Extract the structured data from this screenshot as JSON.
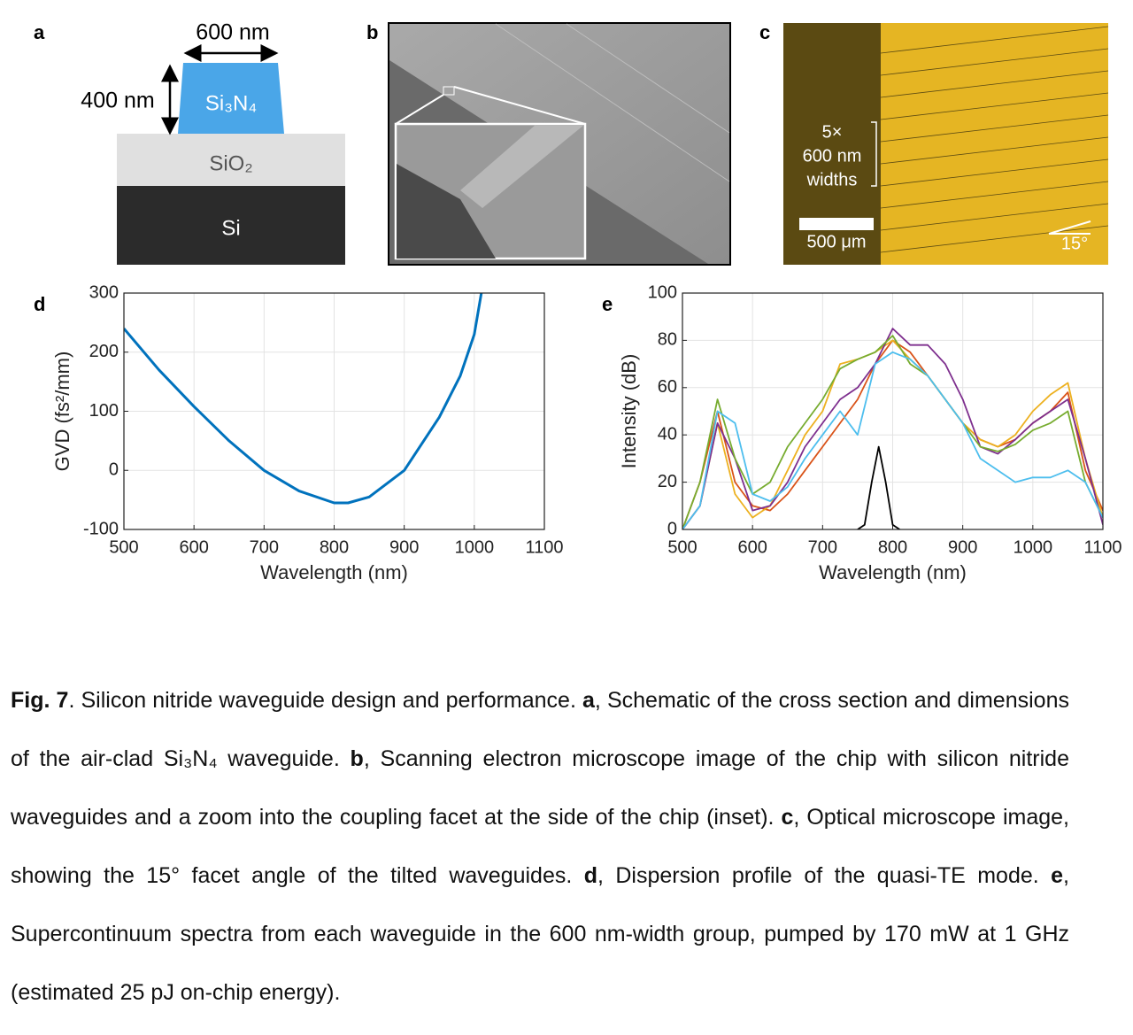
{
  "panels": {
    "a": {
      "label": "a",
      "width": "600 nm",
      "height": "400 nm",
      "core": "Si₃N₄",
      "cladding": "SiO₂",
      "substrate": "Si"
    },
    "b": {
      "label": "b"
    },
    "c": {
      "label": "c",
      "count": "5×",
      "width": "600 nm",
      "widths": "widths",
      "scale": "500 μm",
      "angle": "15°"
    }
  },
  "chart_data": [
    {
      "type": "line",
      "panel_label": "d",
      "x_label": "Wavelength (nm)",
      "y_label": "GVD (fs²/mm)",
      "x": [
        500,
        550,
        600,
        650,
        700,
        750,
        800,
        820,
        850,
        900,
        950,
        980,
        1000,
        1010
      ],
      "series": [
        {
          "color": "#0072bd",
          "values": [
            240,
            170,
            108,
            50,
            0,
            -35,
            -55,
            -55,
            -45,
            0,
            90,
            160,
            230,
            300
          ]
        }
      ],
      "xlim": [
        500,
        1100
      ],
      "xticks": [
        500,
        600,
        700,
        800,
        900,
        1000,
        1100
      ],
      "ylim": [
        -100,
        300
      ],
      "yticks": [
        -100,
        0,
        100,
        200,
        300
      ],
      "grid": true
    },
    {
      "type": "line",
      "panel_label": "e",
      "x_label": "Wavelength (nm)",
      "y_label": "Intensity (dB)",
      "x": [
        500,
        525,
        550,
        575,
        600,
        625,
        650,
        675,
        700,
        725,
        750,
        775,
        800,
        825,
        850,
        875,
        900,
        925,
        950,
        975,
        1000,
        1025,
        1050,
        1075,
        1100
      ],
      "series": [
        {
          "color": "#d95319",
          "values": [
            0,
            20,
            50,
            20,
            10,
            8,
            15,
            25,
            35,
            45,
            55,
            70,
            80,
            75,
            65,
            55,
            45,
            38,
            35,
            38,
            45,
            50,
            58,
            25,
            8
          ]
        },
        {
          "color": "#edb120",
          "values": [
            0,
            10,
            45,
            15,
            5,
            10,
            25,
            40,
            50,
            70,
            72,
            75,
            80,
            72,
            65,
            55,
            45,
            38,
            35,
            40,
            50,
            57,
            62,
            30,
            5
          ]
        },
        {
          "color": "#7e2f8e",
          "values": [
            0,
            10,
            45,
            30,
            8,
            10,
            20,
            35,
            45,
            55,
            60,
            70,
            85,
            78,
            78,
            70,
            55,
            35,
            32,
            38,
            45,
            50,
            55,
            30,
            2
          ]
        },
        {
          "color": "#77ac30",
          "values": [
            0,
            20,
            55,
            30,
            15,
            20,
            35,
            45,
            55,
            68,
            72,
            75,
            82,
            70,
            65,
            55,
            45,
            35,
            33,
            36,
            42,
            45,
            50,
            20,
            5
          ]
        },
        {
          "color": "#4dbeee",
          "values": [
            0,
            10,
            50,
            45,
            15,
            12,
            18,
            30,
            40,
            50,
            40,
            70,
            75,
            72,
            65,
            55,
            45,
            30,
            25,
            20,
            22,
            22,
            25,
            20,
            5
          ]
        },
        {
          "color": "#000000",
          "x": [
            750,
            760,
            770,
            780,
            790,
            800,
            810
          ],
          "values": [
            0,
            2,
            20,
            35,
            20,
            2,
            0
          ]
        }
      ],
      "xlim": [
        500,
        1100
      ],
      "xticks": [
        500,
        600,
        700,
        800,
        900,
        1000,
        1100
      ],
      "ylim": [
        0,
        100
      ],
      "yticks": [
        0,
        20,
        40,
        60,
        80,
        100
      ],
      "grid": true
    }
  ],
  "caption": {
    "segments": [
      {
        "text": "Fig. 7",
        "bold": true
      },
      {
        "text": ". Silicon nitride waveguide design and performance. ",
        "bold": false
      },
      {
        "text": "a",
        "bold": true
      },
      {
        "text": ", Schematic of the cross section and dimensions of the air-clad Si₃N₄ waveguide. ",
        "bold": false
      },
      {
        "text": "b",
        "bold": true
      },
      {
        "text": ", Scanning electron microscope image of the chip with silicon nitride waveguides and a zoom into the coupling facet at the side of the chip (inset).  ",
        "bold": false
      },
      {
        "text": "c",
        "bold": true
      },
      {
        "text": ", Optical microscope image, showing the 15° facet angle of the tilted waveguides. ",
        "bold": false
      },
      {
        "text": "d",
        "bold": true
      },
      {
        "text": ", Dispersion profile of the quasi-TE mode. ",
        "bold": false
      },
      {
        "text": "e",
        "bold": true
      },
      {
        "text": ", Supercontinuum spectra from each waveguide in the 600 nm-width group, pumped by 170 mW at 1 GHz (estimated 25 pJ on-chip energy).",
        "bold": false
      }
    ]
  }
}
